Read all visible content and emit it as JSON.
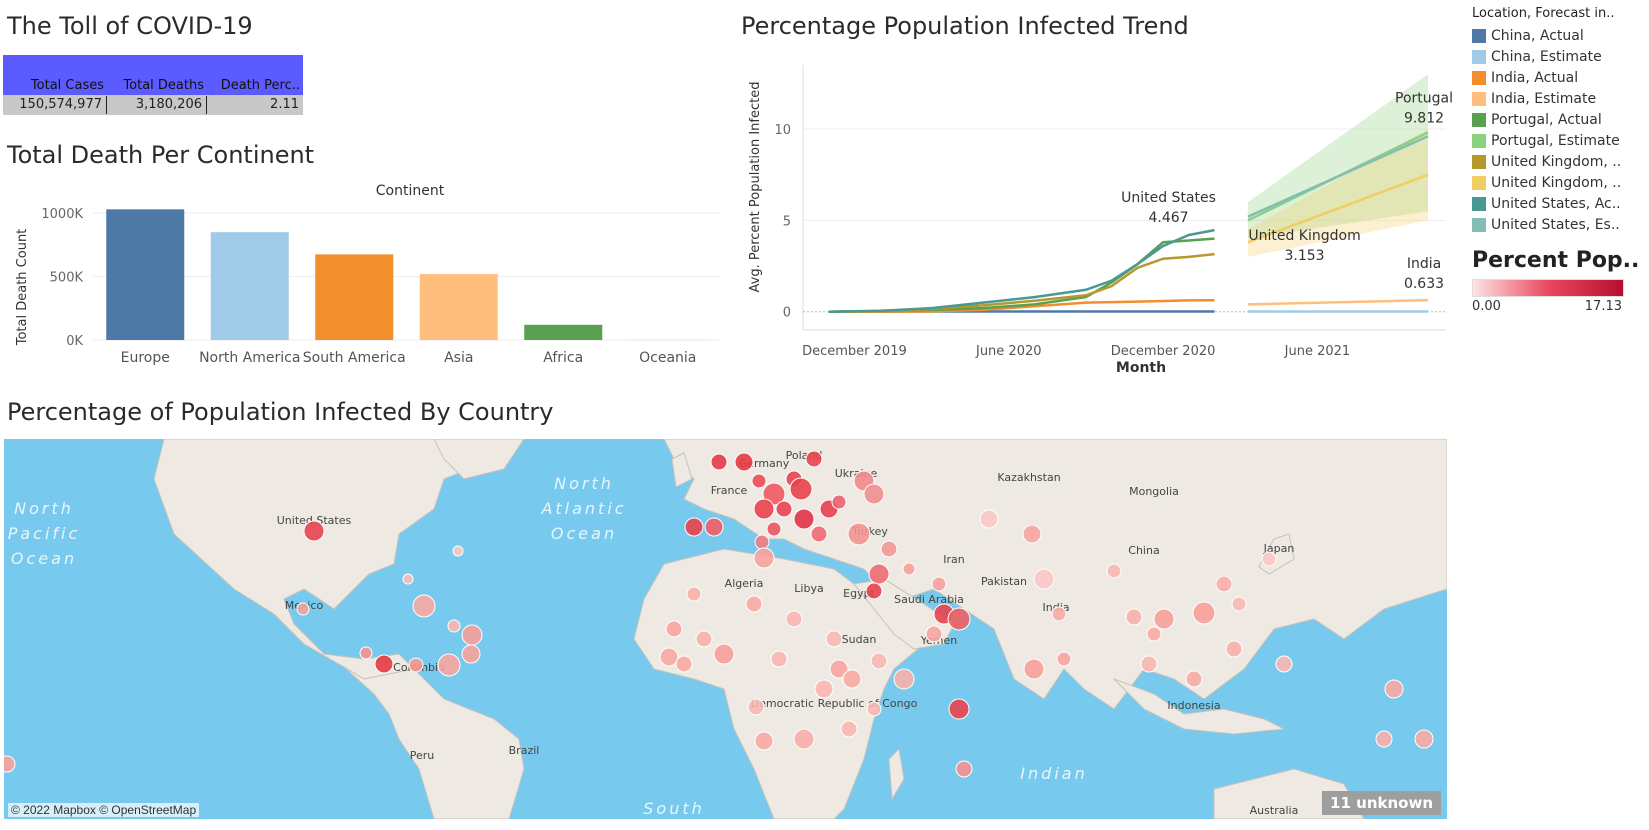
{
  "titles": {
    "toll": "The Toll of COVID-19",
    "continent": "Total Death Per Continent",
    "trend": "Percentage Population Infected Trend",
    "map": "Percentage of Population Infected By Country"
  },
  "kpi": {
    "headers": [
      "Total Cases",
      "Total Deaths",
      "Death Perc.."
    ],
    "values": [
      "150,574,977",
      "3,180,206",
      "2.11"
    ],
    "header_color": "#5b5bff"
  },
  "chart_data": [
    {
      "type": "bar",
      "title": "Total Death Per Continent",
      "column_header": "Continent",
      "ylabel": "Total Death Count",
      "categories": [
        "Europe",
        "North America",
        "South America",
        "Asia",
        "Africa",
        "Oceania"
      ],
      "values": [
        1030000,
        850000,
        675000,
        520000,
        120000,
        1000
      ],
      "colors": [
        "#4e79a7",
        "#a0cbe8",
        "#f28e2b",
        "#ffbe7d",
        "#59a14f",
        "#8cd17d"
      ],
      "yticks": [
        "0K",
        "500K",
        "1000K"
      ],
      "ylim": [
        0,
        1080000
      ]
    },
    {
      "type": "line",
      "title": "Percentage Population Infected Trend",
      "xlabel": "Month",
      "ylabel": "Avg. Percent Population Infected",
      "xticks": [
        "December 2019",
        "June 2020",
        "December 2020",
        "June 2021"
      ],
      "yticks": [
        "0",
        "5",
        "10"
      ],
      "ylim": [
        -1,
        13.5
      ],
      "series": [
        {
          "name": "China, Actual",
          "color": "#4e79a7",
          "values": [
            [
              0,
              0
            ],
            [
              1,
              0.01
            ],
            [
              2,
              0.01
            ],
            [
              3,
              0.01
            ],
            [
              4,
              0.01
            ],
            [
              5,
              0.01
            ],
            [
              6,
              0.01
            ],
            [
              7,
              0.01
            ],
            [
              8,
              0.01
            ],
            [
              9,
              0.01
            ],
            [
              10,
              0.01
            ],
            [
              11,
              0.01
            ],
            [
              12,
              0.01
            ],
            [
              13,
              0.01
            ],
            [
              14,
              0.01
            ],
            [
              15,
              0.01
            ]
          ]
        },
        {
          "name": "China, Estimate",
          "color": "#a0cbe8",
          "values": [
            [
              16.3,
              0.01
            ],
            [
              23.3,
              0.01
            ]
          ]
        },
        {
          "name": "India, Actual",
          "color": "#f28e2b",
          "values": [
            [
              0,
              0
            ],
            [
              2,
              0
            ],
            [
              4,
              0.02
            ],
            [
              6,
              0.1
            ],
            [
              8,
              0.3
            ],
            [
              10,
              0.5
            ],
            [
              12,
              0.55
            ],
            [
              14,
              0.62
            ],
            [
              15,
              0.63
            ]
          ]
        },
        {
          "name": "India, Estimate",
          "color": "#ffbe7d",
          "values": [
            [
              16.3,
              0.4
            ],
            [
              23.3,
              0.633
            ]
          ]
        },
        {
          "name": "Portugal, Actual",
          "color": "#59a14f",
          "values": [
            [
              0,
              0
            ],
            [
              3,
              0.05
            ],
            [
              6,
              0.2
            ],
            [
              8,
              0.4
            ],
            [
              10,
              0.8
            ],
            [
              11,
              1.6
            ],
            [
              12,
              2.6
            ],
            [
              13,
              3.8
            ],
            [
              14,
              3.9
            ],
            [
              15,
              4.0
            ]
          ]
        },
        {
          "name": "Portugal, Estimate",
          "color": "#8cd17d",
          "values": [
            [
              16.3,
              5.0
            ],
            [
              23.3,
              9.812
            ]
          ],
          "band": [
            [
              16.3,
              4.0,
              6.0
            ],
            [
              23.3,
              5.5,
              13.0
            ]
          ]
        },
        {
          "name": "United Kingdom, ..",
          "color": "#b6992d",
          "values": [
            [
              0,
              0
            ],
            [
              3,
              0.05
            ],
            [
              6,
              0.35
            ],
            [
              8,
              0.6
            ],
            [
              10,
              0.9
            ],
            [
              11,
              1.4
            ],
            [
              12,
              2.4
            ],
            [
              13,
              2.9
            ],
            [
              14,
              3.0
            ],
            [
              15,
              3.153
            ]
          ]
        },
        {
          "name": "United Kingdom, ..",
          "color": "#f1ce63",
          "values": [
            [
              16.3,
              3.8
            ],
            [
              23.3,
              7.5
            ]
          ],
          "band": [
            [
              16.3,
              3.0,
              4.5
            ],
            [
              23.3,
              5.0,
              10.0
            ]
          ]
        },
        {
          "name": "United States, Ac..",
          "color": "#499894",
          "values": [
            [
              0,
              0
            ],
            [
              2,
              0.05
            ],
            [
              4,
              0.2
            ],
            [
              6,
              0.5
            ],
            [
              8,
              0.8
            ],
            [
              10,
              1.2
            ],
            [
              11,
              1.7
            ],
            [
              12,
              2.6
            ],
            [
              13,
              3.6
            ],
            [
              14,
              4.2
            ],
            [
              15,
              4.467
            ]
          ]
        },
        {
          "name": "United States, Es..",
          "color": "#86bcb6",
          "values": [
            [
              16.3,
              5.2
            ],
            [
              23.3,
              9.6
            ]
          ]
        }
      ],
      "annotations": [
        {
          "name": "United States",
          "value": "4.467"
        },
        {
          "name": "Portugal",
          "value": "9.812"
        },
        {
          "name": "United Kingdom",
          "value": "3.153"
        },
        {
          "name": "India",
          "value": "0.633"
        }
      ]
    }
  ],
  "legend": {
    "title": "Location, Forecast in..",
    "items": [
      {
        "label": "China, Actual",
        "color": "#4e79a7"
      },
      {
        "label": "China, Estimate",
        "color": "#a0cbe8"
      },
      {
        "label": "India, Actual",
        "color": "#f28e2b"
      },
      {
        "label": "India, Estimate",
        "color": "#ffbe7d"
      },
      {
        "label": "Portugal, Actual",
        "color": "#59a14f"
      },
      {
        "label": "Portugal, Estimate",
        "color": "#8cd17d"
      },
      {
        "label": "United Kingdom, ..",
        "color": "#b6992d"
      },
      {
        "label": "United Kingdom, ..",
        "color": "#f1ce63"
      },
      {
        "label": "United States, Ac..",
        "color": "#499894"
      },
      {
        "label": "United States, Es..",
        "color": "#86bcb6"
      }
    ]
  },
  "pct_legend": {
    "title": "Percent Pop..",
    "min": "0.00",
    "max": "17.13"
  },
  "map": {
    "attribution": "© 2022 Mapbox © OpenStreetMap",
    "unknown": "11 unknown",
    "ocean_labels": [
      "North",
      "Pacific",
      "Ocean",
      "North",
      "Atlantic",
      "Ocean",
      "Indian",
      "South"
    ],
    "country_labels": [
      "United States",
      "Mexico",
      "Colombia",
      "Brazil",
      "Peru",
      "Algeria",
      "Libya",
      "Egypt",
      "Sudan",
      "Saudi Arabia",
      "Yemen",
      "Democratic Republic of Congo",
      "Kazakhstan",
      "Mongolia",
      "China",
      "India",
      "Pakistan",
      "Iran",
      "Turkey",
      "Ukraine",
      "Poland",
      "Germany",
      "France",
      "Japan",
      "Indonesia",
      "Australia"
    ]
  }
}
